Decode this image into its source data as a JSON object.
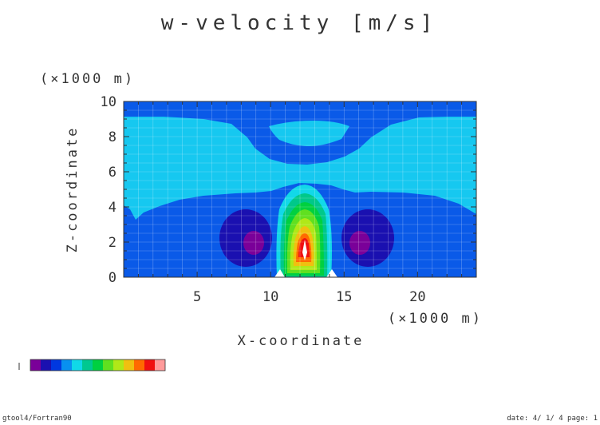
{
  "chart_data": {
    "type": "heatmap",
    "title": "w-velocity [m/s]",
    "xlabel": "X-coordinate",
    "ylabel": "Z-coordinate",
    "x_unit": "(×1000 m)",
    "y_unit": "(×1000 m)",
    "xlim": [
      0,
      24
    ],
    "ylim": [
      0,
      10
    ],
    "x_ticks": [
      "5",
      "10",
      "15",
      "20"
    ],
    "y_ticks": [
      "0",
      "2",
      "4",
      "6",
      "8",
      "10"
    ],
    "grid": true,
    "colorbar": {
      "colors": [
        "#7a0099",
        "#1a10b0",
        "#0038e0",
        "#0890f0",
        "#10d8e8",
        "#00c890",
        "#00d040",
        "#60e020",
        "#b0e818",
        "#f0c010",
        "#ff6a00",
        "#f01010",
        "#ff9a9a"
      ]
    }
  },
  "footer": {
    "left": "gtool4/Fortran90",
    "right": "date: 4/ 1/ 4 page: 1"
  }
}
